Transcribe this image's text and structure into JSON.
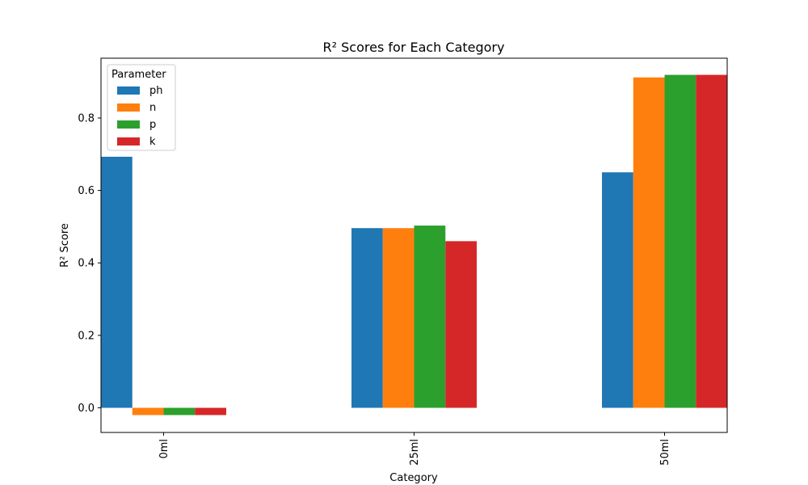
{
  "chart_data": {
    "type": "bar",
    "title": "R² Scores for Each Category",
    "xlabel": "Category",
    "ylabel": "R² Score",
    "categories": [
      "0ml",
      "25ml",
      "50ml"
    ],
    "ylim": [
      -0.068,
      0.965
    ],
    "yticks": [
      0.0,
      0.2,
      0.4,
      0.6,
      0.8
    ],
    "ytick_labels": [
      "0.0",
      "0.2",
      "0.4",
      "0.6",
      "0.8"
    ],
    "grid": false,
    "legend": {
      "title": "Parameter",
      "placement": "top-left"
    },
    "series": [
      {
        "name": "ph",
        "color": "#1f77b4",
        "values": [
          0.693,
          0.496,
          0.65
        ]
      },
      {
        "name": "n",
        "color": "#ff7f0e",
        "values": [
          -0.02,
          0.496,
          0.912
        ]
      },
      {
        "name": "p",
        "color": "#2ca02c",
        "values": [
          -0.02,
          0.503,
          0.919
        ]
      },
      {
        "name": "k",
        "color": "#d62728",
        "values": [
          -0.02,
          0.46,
          0.919
        ]
      }
    ]
  }
}
